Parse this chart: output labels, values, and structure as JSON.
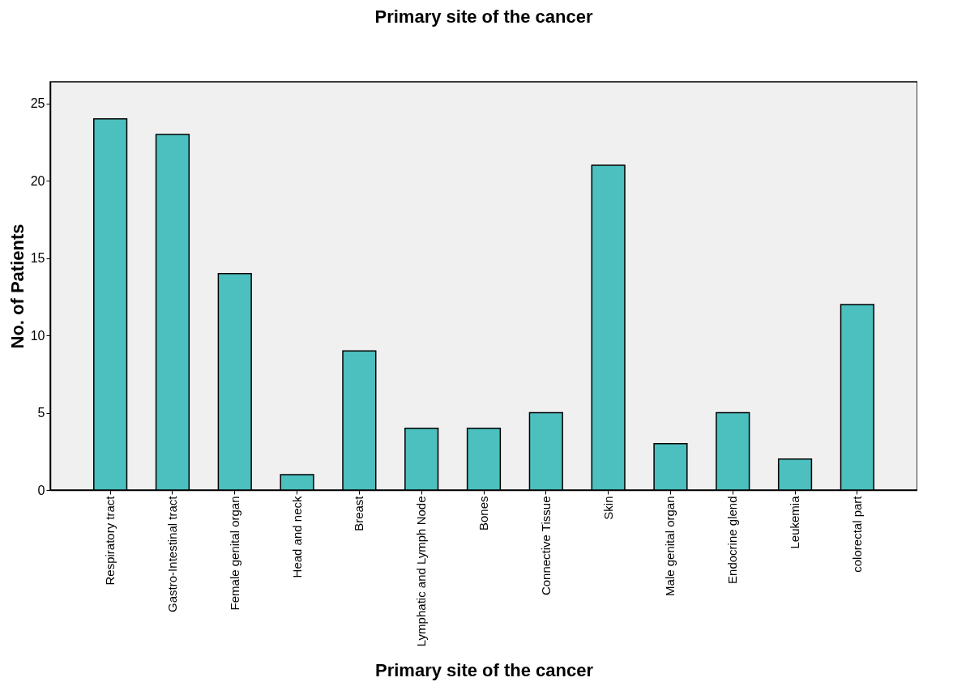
{
  "chart_data": {
    "type": "bar",
    "title": "Primary site of the cancer",
    "xlabel": "Primary site of the cancer",
    "ylabel": "No. of Patients",
    "categories": [
      "Respiratory tract",
      "Gastro-Intestinal tract",
      "Female genital organ",
      "Head and neck",
      "Breast",
      "Lymphatic and Lymph Node",
      "Bones",
      "Connective Tissue",
      "Skin",
      "Male genital organ",
      "Endocrine glend",
      "Leukemia",
      "colorectal part"
    ],
    "values": [
      24,
      23,
      14,
      1,
      9,
      4,
      4,
      5,
      21,
      3,
      5,
      2,
      12
    ],
    "color": "#4cbfbf",
    "ylim": [
      0,
      26.4
    ],
    "yticks": [
      0,
      5,
      10,
      15,
      20,
      25
    ],
    "grid": false
  }
}
